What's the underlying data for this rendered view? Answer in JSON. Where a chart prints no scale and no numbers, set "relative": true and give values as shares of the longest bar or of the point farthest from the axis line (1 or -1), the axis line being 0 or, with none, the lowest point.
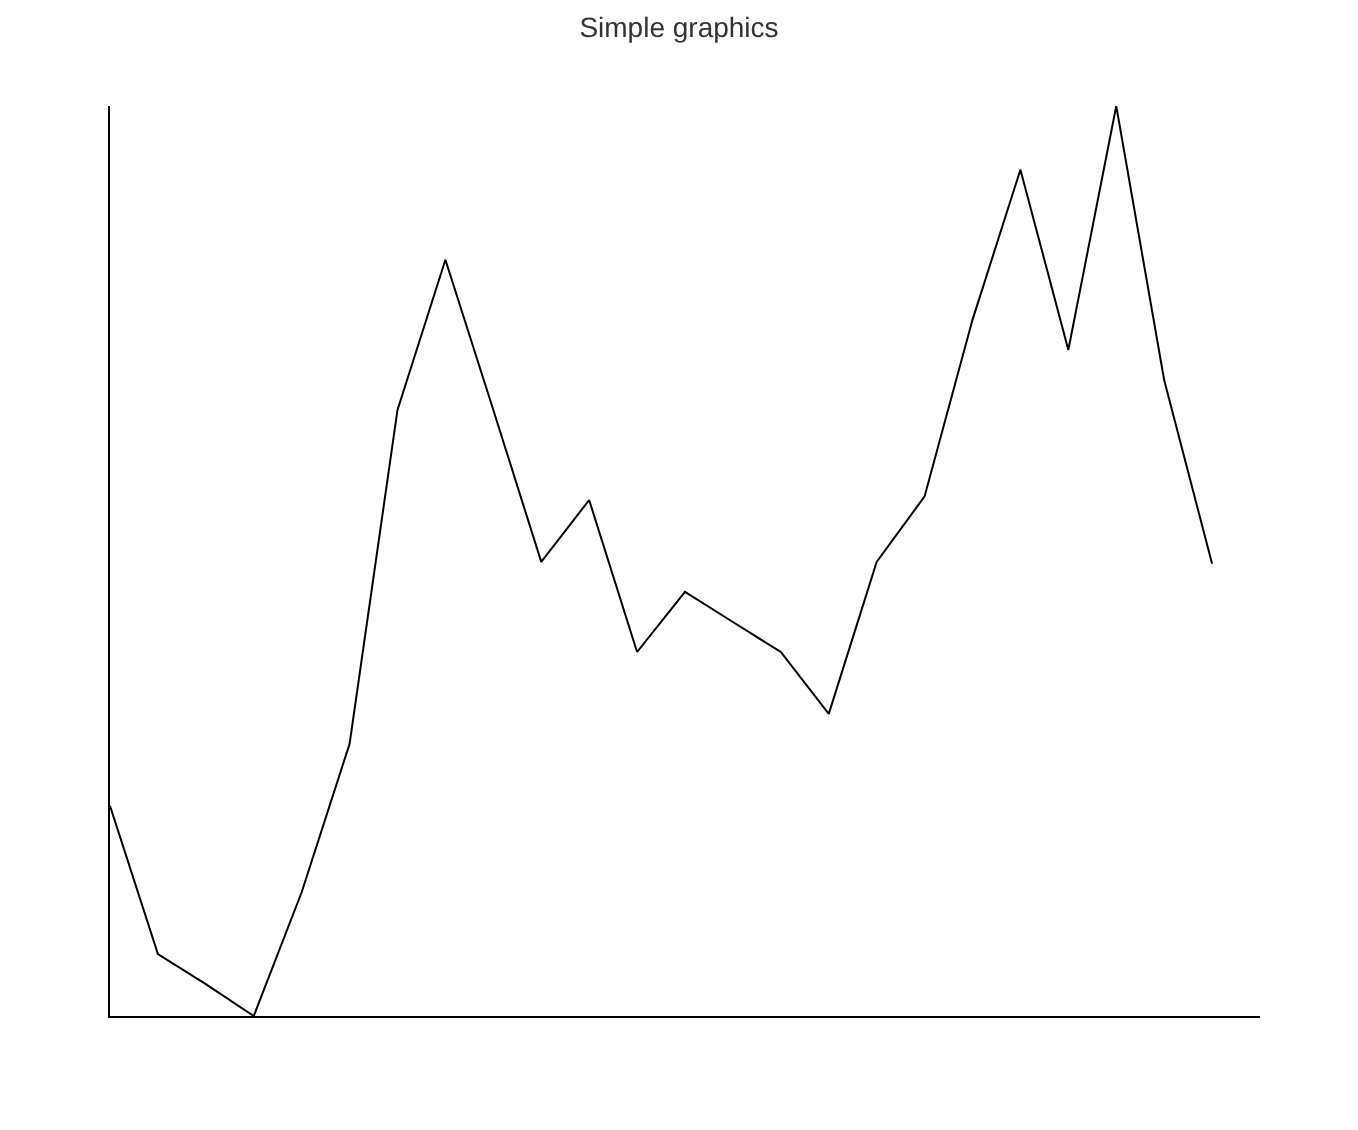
{
  "chart_data": {
    "type": "line",
    "title": "Simple graphics",
    "relative": true,
    "categories": [
      null,
      null,
      null,
      null,
      null,
      null,
      null,
      null,
      null,
      null,
      null,
      null,
      null,
      null,
      null,
      null,
      null,
      null,
      null,
      null,
      null,
      null,
      null,
      null
    ],
    "series": [
      {
        "color": "#000000",
        "values": [
          0.231,
          0.068,
          0.035,
          0,
          0.136,
          0.299,
          0.666,
          0.831,
          0.666,
          0.499,
          0.567,
          0.4,
          0.466,
          0.433,
          0.4,
          0.332,
          0.499,
          0.571,
          0.765,
          0.93,
          0.732,
          1,
          0.699,
          0.497
        ]
      }
    ],
    "marker": "none",
    "line_style": "solid"
  }
}
